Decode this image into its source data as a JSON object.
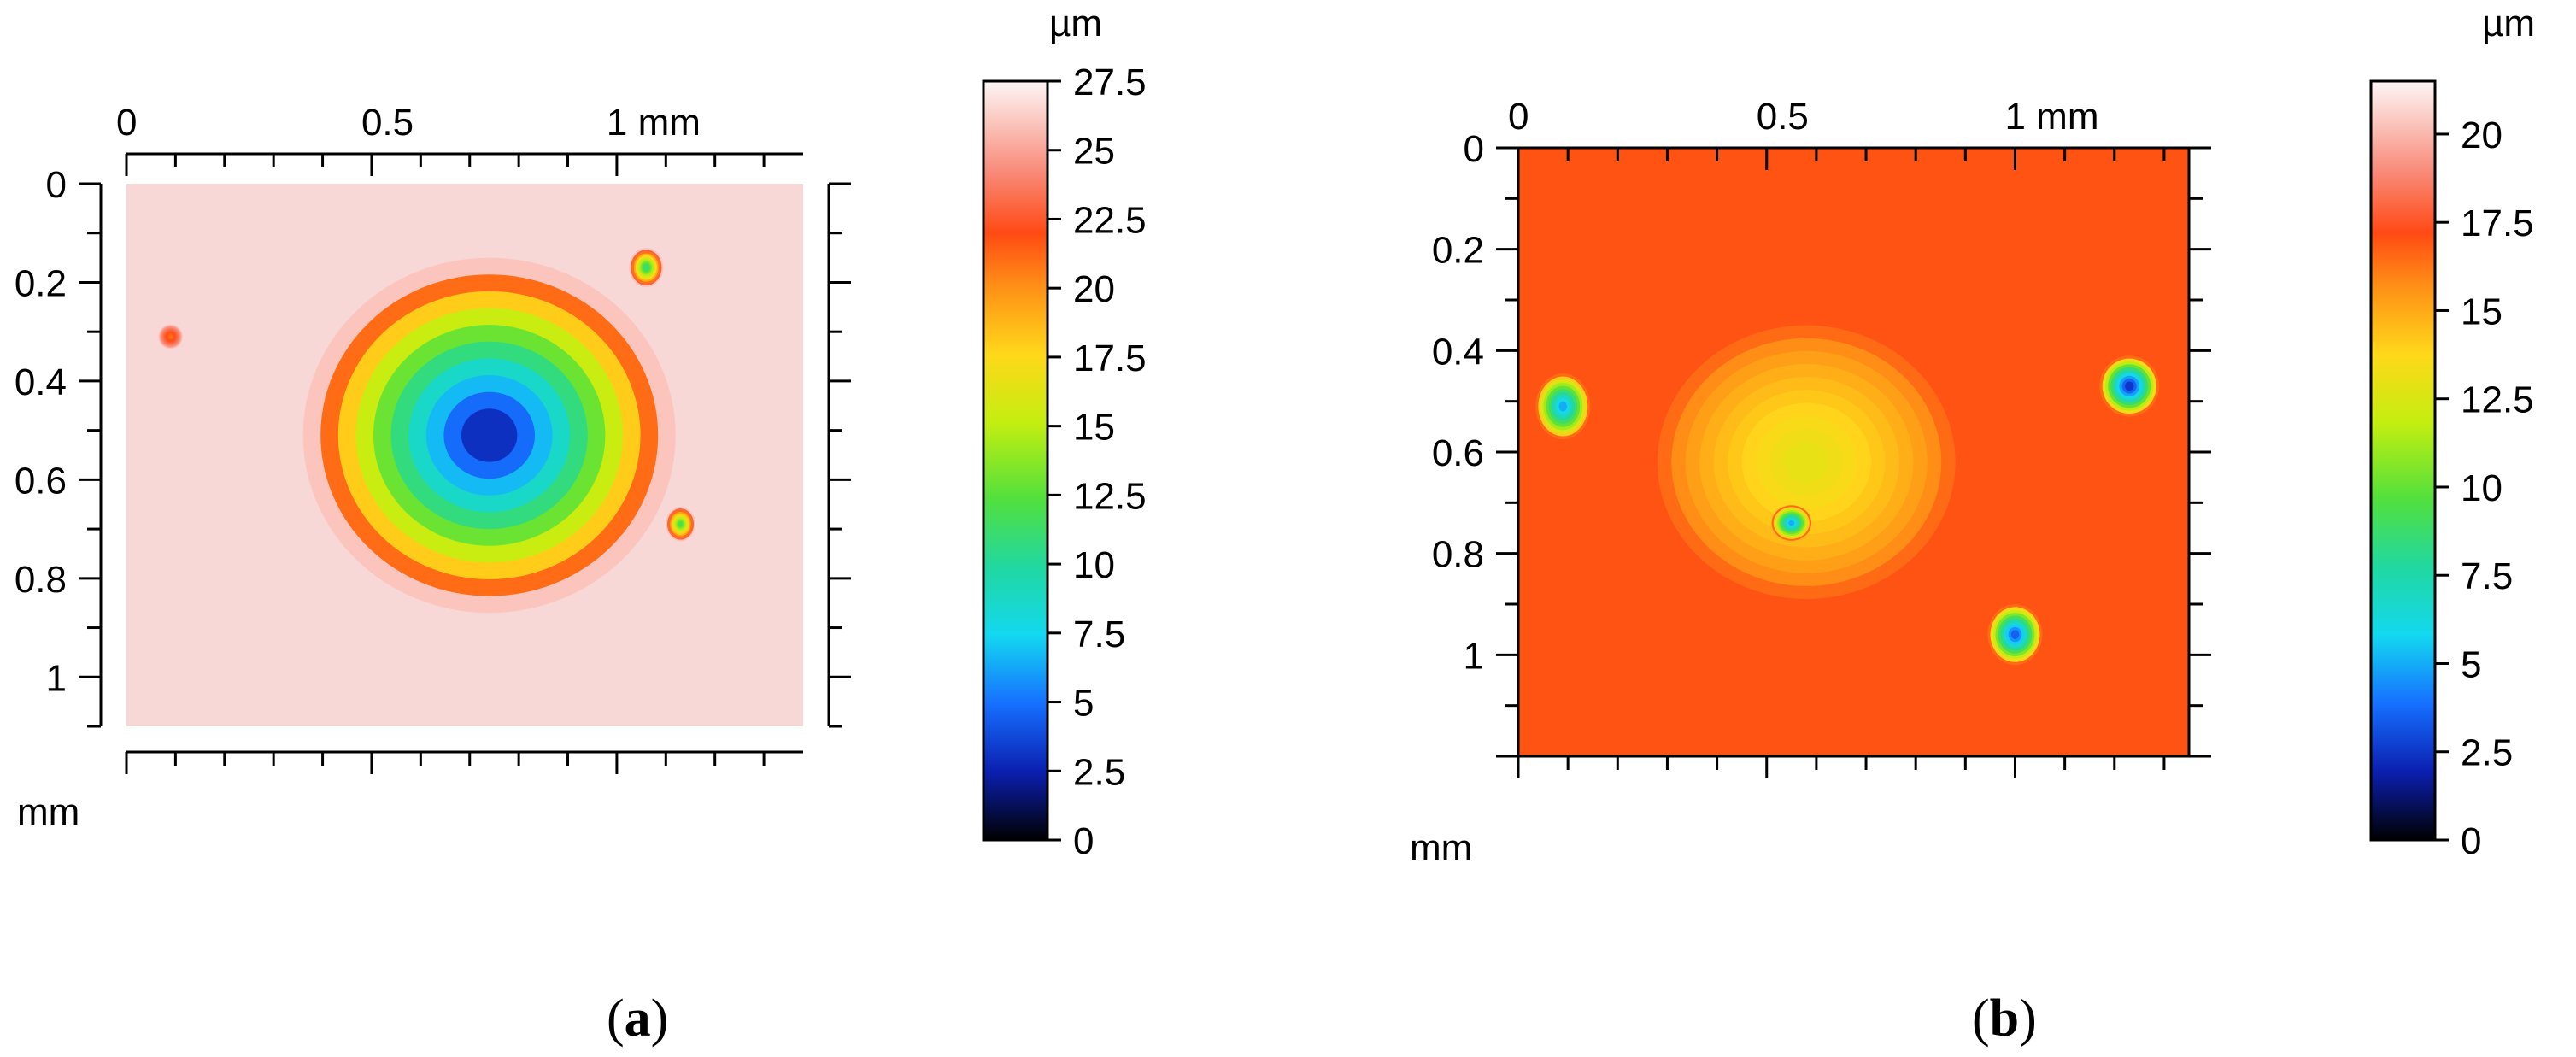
{
  "chart_data": [
    {
      "type": "heatmap",
      "panel_label": "a",
      "x_unit_label": "mm",
      "y_unit_label": "mm",
      "x_ticks": [
        {
          "value": 0,
          "label": "0"
        },
        {
          "value": 0.5,
          "label": "0.5"
        },
        {
          "value": 1,
          "label": "1 mm"
        }
      ],
      "y_ticks": [
        {
          "value": 0,
          "label": "0"
        },
        {
          "value": 0.2,
          "label": "0.2"
        },
        {
          "value": 0.4,
          "label": "0.4"
        },
        {
          "value": 0.6,
          "label": "0.6"
        },
        {
          "value": 0.8,
          "label": "0.8"
        },
        {
          "value": 1,
          "label": "1"
        }
      ],
      "xlim": [
        0,
        1.38
      ],
      "ylim": [
        0,
        1.1
      ],
      "colorbar": {
        "unit": "µm",
        "range": [
          0,
          27.5
        ],
        "ticks": [
          "0",
          "2.5",
          "5",
          "7.5",
          "10",
          "12.5",
          "15",
          "17.5",
          "20",
          "22.5",
          "25",
          "27.5"
        ],
        "tick_values": [
          0,
          2.5,
          5,
          7.5,
          10,
          12.5,
          15,
          17.5,
          20,
          22.5,
          25,
          27.5
        ]
      },
      "background_level_um": 26,
      "features": [
        {
          "kind": "crater",
          "center_mm": [
            0.74,
            0.51
          ],
          "radius_mm": [
            0.38,
            0.36
          ],
          "min_level_um": 3
        },
        {
          "kind": "pit",
          "center_mm": [
            1.06,
            0.17
          ],
          "radius_mm": [
            0.035,
            0.04
          ],
          "min_level_um": 11
        },
        {
          "kind": "pit",
          "center_mm": [
            1.13,
            0.69
          ],
          "radius_mm": [
            0.03,
            0.035
          ],
          "min_level_um": 12
        },
        {
          "kind": "spot",
          "center_mm": [
            0.09,
            0.31
          ],
          "radius_mm": [
            0.025,
            0.025
          ],
          "min_level_um": 21
        }
      ]
    },
    {
      "type": "heatmap",
      "panel_label": "b",
      "x_unit_label": "mm",
      "y_unit_label": "mm",
      "x_ticks": [
        {
          "value": 0,
          "label": "0"
        },
        {
          "value": 0.5,
          "label": "0.5"
        },
        {
          "value": 1,
          "label": "1 mm"
        }
      ],
      "y_ticks": [
        {
          "value": 0,
          "label": "0"
        },
        {
          "value": 0.2,
          "label": "0.2"
        },
        {
          "value": 0.4,
          "label": "0.4"
        },
        {
          "value": 0.6,
          "label": "0.6"
        },
        {
          "value": 0.8,
          "label": "0.8"
        },
        {
          "value": 1,
          "label": "1"
        }
      ],
      "xlim": [
        0,
        1.35
      ],
      "ylim": [
        0,
        1.2
      ],
      "colorbar": {
        "unit": "µm",
        "range": [
          0,
          21.5
        ],
        "ticks": [
          "0",
          "2.5",
          "5",
          "7.5",
          "10",
          "12.5",
          "15",
          "17.5",
          "20"
        ],
        "tick_values": [
          0,
          2.5,
          5,
          7.5,
          10,
          12.5,
          15,
          17.5,
          20
        ]
      },
      "background_level_um": 16.5,
      "features": [
        {
          "kind": "bump",
          "center_mm": [
            0.58,
            0.62
          ],
          "radius_mm": [
            0.3,
            0.27
          ],
          "min_level_um": 13
        },
        {
          "kind": "pit",
          "center_mm": [
            0.09,
            0.51
          ],
          "radius_mm": [
            0.055,
            0.065
          ],
          "min_level_um": 5
        },
        {
          "kind": "pit",
          "center_mm": [
            1.23,
            0.47
          ],
          "radius_mm": [
            0.06,
            0.06
          ],
          "min_level_um": 2.5
        },
        {
          "kind": "pit",
          "center_mm": [
            0.55,
            0.74
          ],
          "radius_mm": [
            0.04,
            0.035
          ],
          "min_level_um": 5
        },
        {
          "kind": "pit",
          "center_mm": [
            1.0,
            0.96
          ],
          "radius_mm": [
            0.055,
            0.06
          ],
          "min_level_um": 3.5
        }
      ]
    }
  ]
}
